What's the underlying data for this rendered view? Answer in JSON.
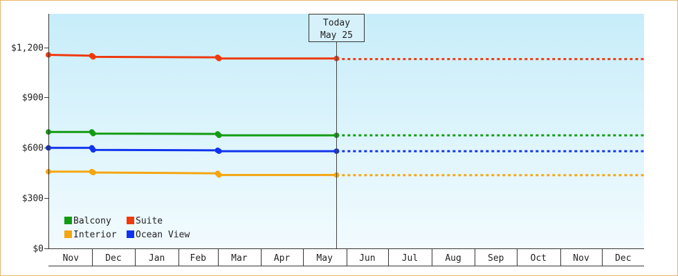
{
  "chart_data": {
    "type": "line",
    "y_ticks": [
      "$0",
      "$300",
      "$600",
      "$900",
      "$1,200"
    ],
    "y_tick_values": [
      0,
      300,
      600,
      900,
      1200
    ],
    "ylim": [
      0,
      1400
    ],
    "x_month_labels": [
      "Nov",
      "Dec",
      "Jan",
      "Feb",
      "Mar",
      "Apr",
      "May",
      "Jun",
      "Jul",
      "Aug",
      "Sep",
      "Oct",
      "Nov",
      "Dec"
    ],
    "x_month_starts": [
      "2013-11-01",
      "2013-12-01",
      "2014-01-01",
      "2014-02-01",
      "2014-03-01",
      "2014-04-01",
      "2014-05-01",
      "2014-06-01",
      "2014-07-01",
      "2014-08-01",
      "2014-09-01",
      "2014-10-01",
      "2014-11-01",
      "2014-12-01"
    ],
    "xlim": [
      "2013-10-31",
      "2014-12-31"
    ],
    "today": {
      "line1": "Today",
      "line2": "May 25",
      "date": "2014-05-25"
    },
    "grid": false,
    "legend_position": "bottom-left",
    "series": [
      {
        "name": "Suite",
        "color": "#ee3a0f",
        "points": [
          {
            "date": "2013-10-31",
            "value": 1155
          },
          {
            "date": "2013-12-01",
            "value": 1150
          },
          {
            "date": "2013-12-02",
            "value": 1143
          },
          {
            "date": "2014-03-01",
            "value": 1140
          },
          {
            "date": "2014-03-02",
            "value": 1133
          },
          {
            "date": "2014-05-25",
            "value": 1133
          }
        ],
        "projected_value": 1130
      },
      {
        "name": "Balcony",
        "color": "#139b13",
        "points": [
          {
            "date": "2013-10-31",
            "value": 695
          },
          {
            "date": "2013-12-01",
            "value": 695
          },
          {
            "date": "2013-12-02",
            "value": 685
          },
          {
            "date": "2014-03-01",
            "value": 683
          },
          {
            "date": "2014-03-02",
            "value": 675
          },
          {
            "date": "2014-05-25",
            "value": 675
          }
        ],
        "projected_value": 675
      },
      {
        "name": "Ocean View",
        "color": "#1033ee",
        "points": [
          {
            "date": "2013-10-31",
            "value": 600
          },
          {
            "date": "2013-12-01",
            "value": 600
          },
          {
            "date": "2013-12-02",
            "value": 588
          },
          {
            "date": "2014-03-01",
            "value": 585
          },
          {
            "date": "2014-03-02",
            "value": 580
          },
          {
            "date": "2014-05-25",
            "value": 580
          }
        ],
        "projected_value": 580
      },
      {
        "name": "Interior",
        "color": "#f5a50f",
        "points": [
          {
            "date": "2013-10-31",
            "value": 458
          },
          {
            "date": "2013-12-01",
            "value": 458
          },
          {
            "date": "2013-12-02",
            "value": 453
          },
          {
            "date": "2014-03-01",
            "value": 448
          },
          {
            "date": "2014-03-02",
            "value": 438
          },
          {
            "date": "2014-05-25",
            "value": 438
          }
        ],
        "projected_value": 437
      }
    ],
    "legend": [
      {
        "name": "Balcony",
        "color": "#139b13"
      },
      {
        "name": "Suite",
        "color": "#ee3a0f"
      },
      {
        "name": "Interior",
        "color": "#f5a50f"
      },
      {
        "name": "Ocean View",
        "color": "#1033ee"
      }
    ]
  }
}
